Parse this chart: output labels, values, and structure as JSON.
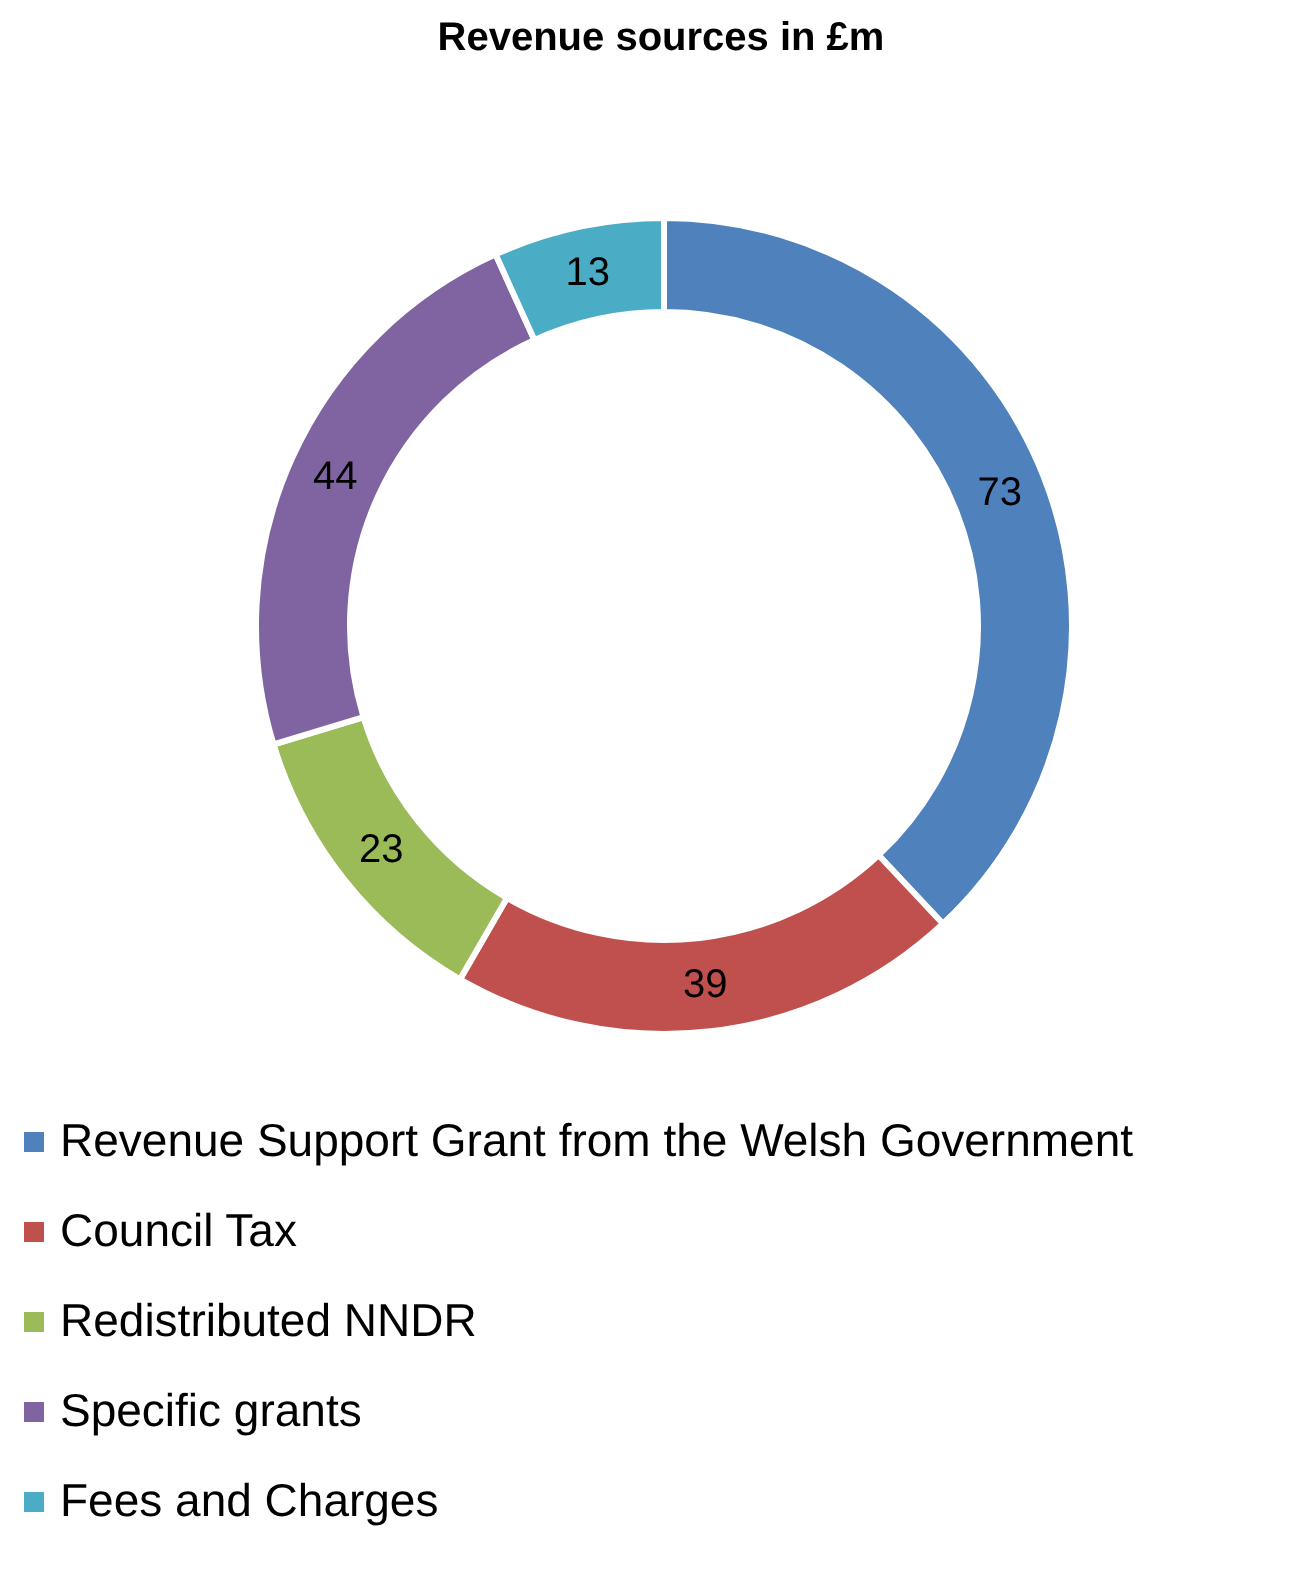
{
  "chart_data": {
    "type": "donut",
    "title": "Revenue sources in £m",
    "categories": [
      "Revenue Support Grant from the Welsh Government",
      "Council Tax",
      "Redistributed NNDR",
      "Specific grants",
      "Fees and Charges"
    ],
    "values": [
      73,
      39,
      23,
      44,
      13
    ],
    "colors": [
      "#4f81bd",
      "#c0504d",
      "#9bbb59",
      "#8064a2",
      "#4bacc6"
    ],
    "data_labels": true,
    "legend": "bottom"
  }
}
